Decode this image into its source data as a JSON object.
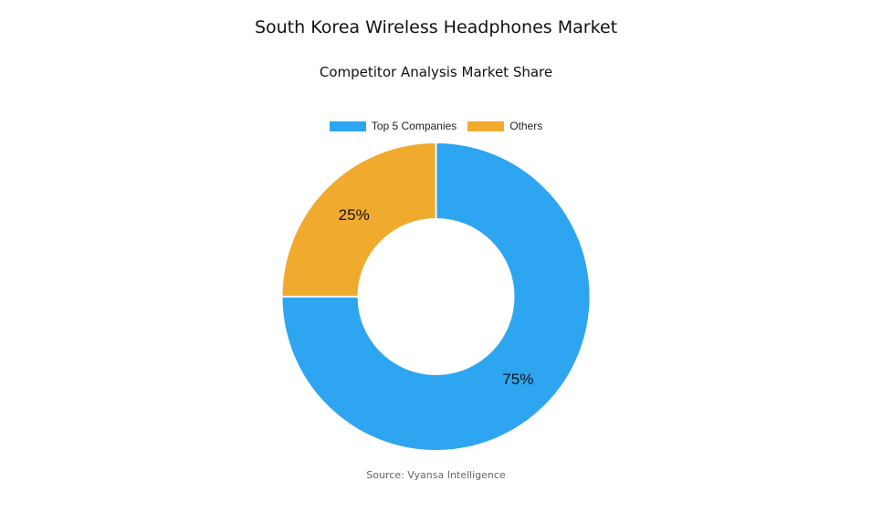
{
  "chart_data": {
    "type": "pie",
    "title": "South Korea Wireless Headphones Market",
    "subtitle": "Competitor Analysis Market Share",
    "categories": [
      "Top 5 Companies",
      "Others"
    ],
    "values": [
      75,
      25
    ],
    "labels": [
      "75%",
      "25%"
    ],
    "colors": [
      "#2ea5f1",
      "#f0ab2e"
    ],
    "legend": "top",
    "donut": true
  },
  "source": "Source: Vyansa Intelligence"
}
